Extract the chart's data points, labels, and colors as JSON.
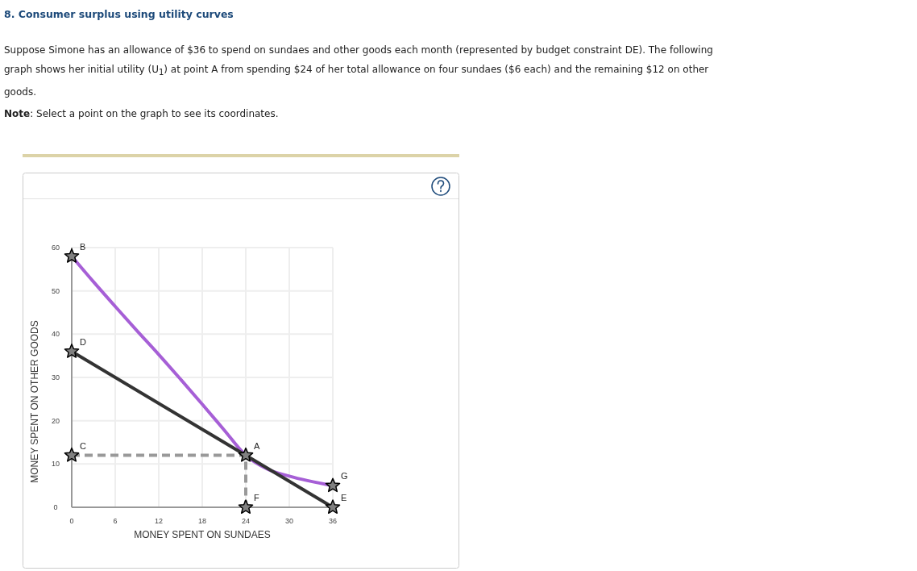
{
  "chart_data": {
    "type": "line",
    "title": "8. Consumer surplus using utility curves",
    "subtitle": "Suppose Simone has an allowance of $36 to spend on sundaes and other goods each month (represented by budget constraint DE). The following graph shows her initial utility (U$_{1}$) at point A from spending $24 of her total allowance on four sundaes ($6 each) and the remaining $12 on other goods.",
    "xlabel": "MONEY SPENT ON SUNDAES",
    "ylabel": "MONEY SPENT ON OTHER GOODS",
    "xlim": [
      0,
      36
    ],
    "ylim": [
      0,
      60
    ],
    "xticks": [
      0,
      6,
      12,
      18,
      24,
      30,
      36
    ],
    "yticks": [
      0,
      10,
      20,
      30,
      40,
      50,
      60
    ],
    "grid": true,
    "series": [
      {
        "color": "#a65fd6",
        "x": [
          0,
          3,
          6,
          9,
          12,
          15,
          18,
          21,
          24,
          27,
          30,
          36
        ],
        "values": [
          58,
          52.1,
          46.4,
          40.8,
          35.3,
          29.6,
          23.8,
          17.9,
          12,
          8.8,
          7.2,
          5
        ]
      },
      {
        "color": "#333333",
        "x": [
          0,
          36
        ],
        "values": [
          36,
          0
        ]
      },
      {
        "color": "#999999",
        "line_style": "dashed",
        "x": [
          0,
          24,
          24
        ],
        "values": [
          12,
          12,
          0
        ]
      },
      {
        "type": "scatter",
        "color": "#808080",
        "marker": "star",
        "x": [
          0,
          0,
          0,
          24,
          24,
          36,
          36
        ],
        "values": [
          58,
          36,
          12,
          12,
          0,
          0,
          5
        ]
      }
    ],
    "annotations": [
      "Note: Select a point on the graph to see its coordinates.",
      {
        "text": "B",
        "x": 0,
        "y": 58
      },
      {
        "text": "D",
        "x": 0,
        "y": 36
      },
      {
        "text": "C",
        "x": 0,
        "y": 12
      },
      {
        "text": "A",
        "x": 24,
        "y": 12
      },
      {
        "text": "F",
        "x": 24,
        "y": 0
      },
      {
        "text": "E",
        "x": 36,
        "y": 0
      },
      {
        "text": "G",
        "x": 36,
        "y": 5
      }
    ]
  }
}
